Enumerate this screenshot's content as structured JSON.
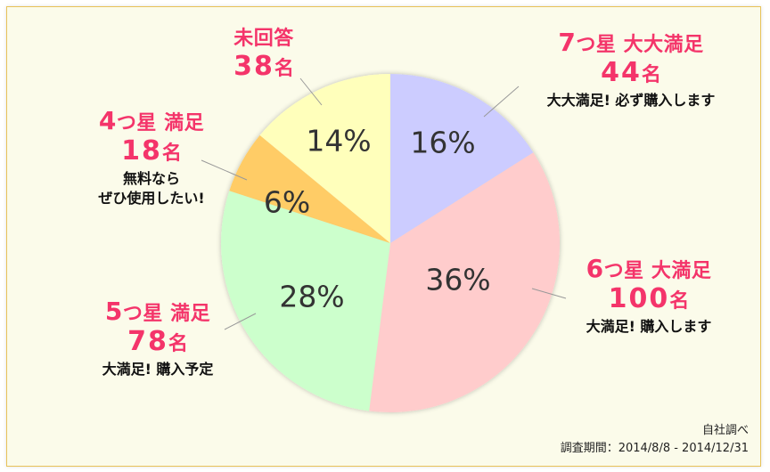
{
  "chart_data": {
    "type": "pie",
    "title": "",
    "start_angle_deg": 0,
    "direction": "clockwise",
    "slices": [
      {
        "key": "seven_star",
        "category": "7つ星 大大満足",
        "count": 44,
        "unit": "名",
        "percent": 16,
        "percent_label": "16%",
        "comment": "大大満足! 必ず購入します",
        "color": "#ccccff"
      },
      {
        "key": "six_star",
        "category": "6つ星 大満足",
        "count": 100,
        "unit": "名",
        "percent": 36,
        "percent_label": "36%",
        "comment": "大満足! 購入します",
        "color": "#ffcccc"
      },
      {
        "key": "five_star",
        "category": "5つ星 満足",
        "count": 78,
        "unit": "名",
        "percent": 28,
        "percent_label": "28%",
        "comment": "大満足! 購入予定",
        "color": "#ccffcc"
      },
      {
        "key": "four_star",
        "category": "4つ星 満足",
        "count": 18,
        "unit": "名",
        "percent": 6,
        "percent_label": "6%",
        "comment": "無料なら ぜひ使用したい!",
        "color": "#ffcc66"
      },
      {
        "key": "no_answer",
        "category": "未回答",
        "count": 38,
        "unit": "名",
        "percent": 14,
        "percent_label": "14%",
        "comment": "",
        "color": "#ffffbb"
      }
    ]
  },
  "labels": {
    "seven": {
      "num": "7",
      "cat": "つ星 大大満足",
      "count": "44",
      "unit": "名",
      "comment": "大大満足! 必ず購入します"
    },
    "six": {
      "num": "6",
      "cat": "つ星 大満足",
      "count": "100",
      "unit": "名",
      "comment": "大満足! 購入します"
    },
    "five": {
      "num": "5",
      "cat": "つ星 満足",
      "count": "78",
      "unit": "名",
      "comment": "大満足!  購入予定"
    },
    "four": {
      "num": "4",
      "cat": "つ星 満足",
      "count": "18",
      "unit": "名",
      "comment1": "無料なら",
      "comment2": "ぜひ使用したい!"
    },
    "none": {
      "cat": "未回答",
      "count": "38",
      "unit": "名"
    }
  },
  "footnote": {
    "source": "自社調べ",
    "period": "調査期間：2014/8/8 - 2014/12/31"
  }
}
